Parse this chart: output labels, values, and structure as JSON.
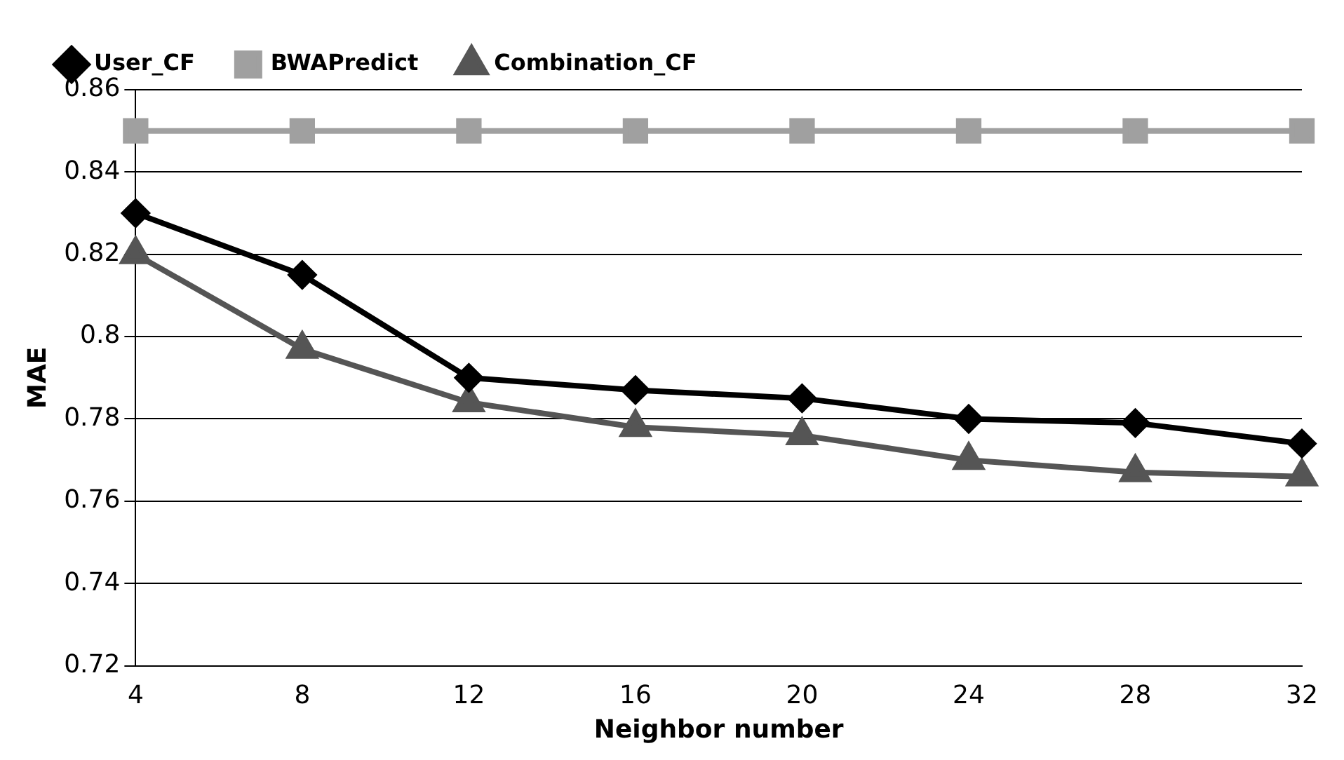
{
  "chart_data": {
    "type": "line",
    "xlabel": "Neighbor number",
    "ylabel": "MAE",
    "categories": [
      "4",
      "8",
      "12",
      "16",
      "20",
      "24",
      "28",
      "32"
    ],
    "series": [
      {
        "name": "User_CF",
        "color": "#000000",
        "marker": "diamond",
        "values": [
          0.83,
          0.815,
          0.79,
          0.787,
          0.785,
          0.78,
          0.779,
          0.774
        ]
      },
      {
        "name": "BWAPredict",
        "color": "#a0a0a0",
        "marker": "square",
        "values": [
          0.85,
          0.85,
          0.85,
          0.85,
          0.85,
          0.85,
          0.85,
          0.85
        ]
      },
      {
        "name": "Combination_CF",
        "color": "#555555",
        "marker": "triangle",
        "values": [
          0.82,
          0.797,
          0.784,
          0.778,
          0.776,
          0.77,
          0.767,
          0.766
        ]
      }
    ],
    "ylim": [
      0.72,
      0.86
    ],
    "yticks": [
      0.72,
      0.74,
      0.76,
      0.78,
      0.8,
      0.82,
      0.84,
      0.86
    ],
    "grid": "y",
    "legend": "top left"
  }
}
